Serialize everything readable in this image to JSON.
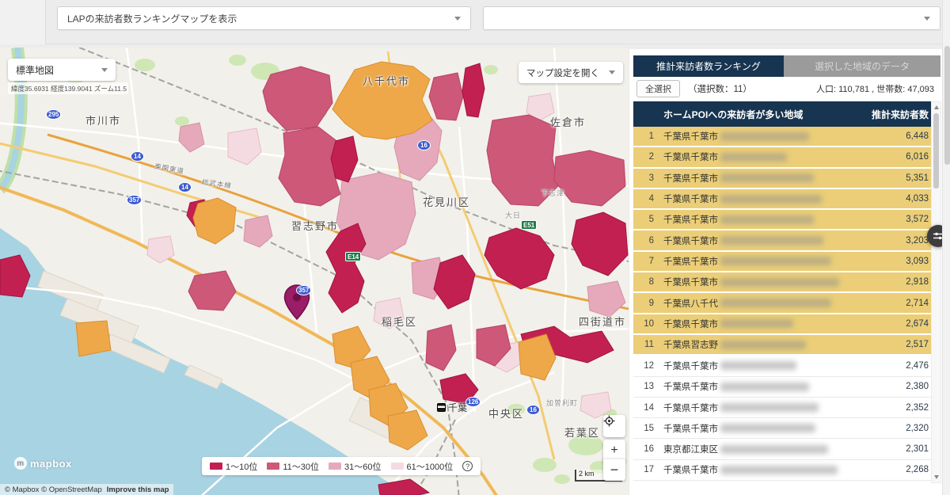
{
  "topbar": {
    "map_type_select": "LAPの来訪者数ランキングマップを表示",
    "secondary_select": ""
  },
  "map": {
    "style_select": "標準地図",
    "coords": "緯度35.6931  経度139.9041  ズーム11.5",
    "settings_button": "マップ設定を開く",
    "scale_label": "2 km",
    "logo_text": "mapbox",
    "attribution": "© Mapbox © OpenStreetMap",
    "improve_link": "Improve this map",
    "controls": {
      "zoom_in": "+",
      "zoom_out": "−"
    },
    "legend": {
      "help": "?",
      "items": [
        {
          "label": "1〜10位",
          "color": "#c32052"
        },
        {
          "label": "11〜30位",
          "color": "#cd5878"
        },
        {
          "label": "31〜60位",
          "color": "#e6a9bc"
        },
        {
          "label": "61〜1000位",
          "color": "#f4dbe2"
        }
      ]
    },
    "selected_region_color": "#eea849",
    "labels": {
      "city1": "市川市",
      "city2": "八千代市",
      "city3": "佐倉市",
      "city4": "習志野市",
      "city5": "花見川区",
      "city6": "稲毛区",
      "city7": "中央区",
      "city8": "若葉区",
      "city9": "四街道市",
      "station": "千葉",
      "town1": "下志津",
      "town2": "大日",
      "town3": "加曽利町",
      "rail1": "東関東道",
      "rail2": "総武本線"
    },
    "shields": {
      "s1": "295",
      "s2": "14",
      "s3": "14",
      "s4": "357",
      "s5": "357",
      "s6": "16",
      "s7": "16",
      "s8": "126",
      "s9": "E14",
      "s10": "E51"
    }
  },
  "panel": {
    "tabs": [
      {
        "label": "推計来訪者数ランキング"
      },
      {
        "label": "選択した地域のデータ"
      }
    ],
    "select_all": "全選択",
    "selection_count": "（選択数：11）",
    "stats": "人口: 110,781 , 世帯数: 47,093",
    "table": {
      "col_area": "ホームPOIへの来訪者が多い地域",
      "col_value": "推計来訪者数",
      "rows": [
        {
          "rank": "1",
          "area": "千葉県千葉市",
          "value": "6,448",
          "selected": true
        },
        {
          "rank": "2",
          "area": "千葉県千葉市",
          "value": "6,016",
          "selected": true
        },
        {
          "rank": "3",
          "area": "千葉県千葉市",
          "value": "5,351",
          "selected": true
        },
        {
          "rank": "4",
          "area": "千葉県千葉市",
          "value": "4,033",
          "selected": true
        },
        {
          "rank": "5",
          "area": "千葉県千葉市",
          "value": "3,572",
          "selected": true
        },
        {
          "rank": "6",
          "area": "千葉県千葉市",
          "value": "3,203",
          "selected": true
        },
        {
          "rank": "7",
          "area": "千葉県千葉市",
          "value": "3,093",
          "selected": true
        },
        {
          "rank": "8",
          "area": "千葉県千葉市",
          "value": "2,918",
          "selected": true
        },
        {
          "rank": "9",
          "area": "千葉県八千代",
          "value": "2,714",
          "selected": true
        },
        {
          "rank": "10",
          "area": "千葉県千葉市",
          "value": "2,674",
          "selected": true
        },
        {
          "rank": "11",
          "area": "千葉県習志野",
          "value": "2,517",
          "selected": true
        },
        {
          "rank": "12",
          "area": "千葉県千葉市",
          "value": "2,476",
          "selected": false
        },
        {
          "rank": "13",
          "area": "千葉県千葉市",
          "value": "2,380",
          "selected": false
        },
        {
          "rank": "14",
          "area": "千葉県千葉市",
          "value": "2,352",
          "selected": false
        },
        {
          "rank": "15",
          "area": "千葉県千葉市",
          "value": "2,320",
          "selected": false
        },
        {
          "rank": "16",
          "area": "東京都江東区",
          "value": "2,301",
          "selected": false
        },
        {
          "rank": "17",
          "area": "千葉県千葉市",
          "value": "2,268",
          "selected": false
        }
      ]
    }
  }
}
